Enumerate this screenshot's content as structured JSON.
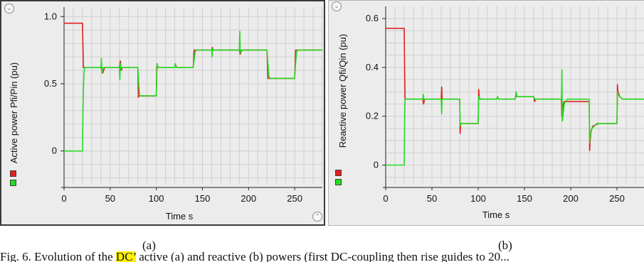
{
  "chart_data": [
    {
      "type": "line",
      "title": "",
      "xlabel": "Time s",
      "ylabel": "Active power Pfi/Pin (pu)",
      "xlim": [
        0,
        280
      ],
      "ylim": [
        -0.25,
        1.07
      ],
      "xticks": [
        "0",
        "50",
        "100",
        "150",
        "200",
        "250"
      ],
      "yticks": [
        "0",
        "0.5",
        "1.0"
      ],
      "grid": true,
      "legend": "bottom-left swatches",
      "series": [
        {
          "color": "#e02020",
          "x": [
            0,
            20,
            20.6,
            21,
            40,
            41,
            42,
            44,
            60,
            61,
            62,
            63,
            80,
            80.5,
            81,
            100,
            100.5,
            101,
            120,
            121,
            122,
            140,
            141,
            142,
            160,
            160.8,
            161.5,
            162,
            190,
            191,
            192,
            193,
            220,
            221,
            222,
            250,
            251,
            252,
            280
          ],
          "y": [
            0.95,
            0.95,
            0.75,
            0.62,
            0.62,
            0.6,
            0.58,
            0.62,
            0.62,
            0.67,
            0.6,
            0.62,
            0.62,
            0.4,
            0.41,
            0.41,
            0.63,
            0.62,
            0.62,
            0.64,
            0.62,
            0.62,
            0.75,
            0.75,
            0.75,
            0.77,
            0.75,
            0.75,
            0.75,
            0.72,
            0.74,
            0.75,
            0.75,
            0.54,
            0.54,
            0.54,
            0.75,
            0.75,
            0.75
          ]
        },
        {
          "color": "#22dd22",
          "x": [
            0,
            20,
            20.5,
            21.5,
            22.5,
            40,
            40.5,
            41,
            42,
            60,
            60.5,
            61,
            62,
            80,
            81,
            82,
            100,
            100.5,
            101,
            102,
            120,
            120.5,
            121,
            122,
            140,
            141,
            142,
            143,
            160,
            160.5,
            161,
            162,
            190,
            190.5,
            191,
            192,
            220,
            221,
            222,
            223,
            250,
            251,
            252,
            253,
            280
          ],
          "y": [
            0,
            0,
            0.3,
            0.58,
            0.62,
            0.62,
            0.69,
            0.58,
            0.62,
            0.62,
            0.53,
            0.65,
            0.62,
            0.62,
            0.5,
            0.41,
            0.41,
            0.55,
            0.65,
            0.62,
            0.62,
            0.65,
            0.63,
            0.62,
            0.62,
            0.68,
            0.73,
            0.75,
            0.75,
            0.7,
            0.76,
            0.75,
            0.75,
            0.89,
            0.73,
            0.75,
            0.75,
            0.65,
            0.56,
            0.54,
            0.54,
            0.65,
            0.73,
            0.75,
            0.75
          ]
        }
      ]
    },
    {
      "type": "line",
      "title": "",
      "xlabel": "Time s",
      "ylabel": "Reactive power Qfi/Qin (pu)",
      "xlim": [
        0,
        280
      ],
      "ylim": [
        -0.08,
        0.65
      ],
      "xticks": [
        "0",
        "50",
        "100",
        "150",
        "200",
        "250"
      ],
      "yticks": [
        "0",
        "0.2",
        "0.4",
        "0.6"
      ],
      "grid": true,
      "legend": "bottom-left swatches",
      "series": [
        {
          "color": "#e02020",
          "x": [
            0,
            20,
            20.5,
            21,
            40,
            41,
            42,
            60,
            60.5,
            61,
            80,
            80.5,
            81,
            82,
            100,
            100.5,
            101,
            102,
            120,
            121,
            122,
            140,
            141,
            142,
            160,
            161,
            162,
            190,
            190.5,
            191,
            192,
            193,
            220,
            220.5,
            221,
            222,
            224,
            230,
            250,
            250.5,
            251,
            253,
            256,
            280
          ],
          "y": [
            0.56,
            0.56,
            0.36,
            0.27,
            0.27,
            0.25,
            0.27,
            0.27,
            0.32,
            0.27,
            0.27,
            0.13,
            0.17,
            0.17,
            0.17,
            0.31,
            0.28,
            0.27,
            0.27,
            0.28,
            0.27,
            0.27,
            0.29,
            0.28,
            0.28,
            0.26,
            0.27,
            0.27,
            0.2,
            0.22,
            0.25,
            0.26,
            0.26,
            0.06,
            0.1,
            0.14,
            0.16,
            0.17,
            0.17,
            0.33,
            0.3,
            0.28,
            0.27,
            0.27
          ]
        },
        {
          "color": "#22dd22",
          "x": [
            0,
            20,
            20.5,
            21,
            40,
            40.5,
            41,
            60,
            60.5,
            61,
            80,
            80.5,
            81,
            100,
            100.5,
            101,
            102,
            120,
            121,
            122,
            140,
            141,
            142,
            160,
            161,
            162,
            190,
            190.5,
            191,
            193,
            196,
            220,
            220.5,
            221,
            223,
            228,
            250,
            250.5,
            251,
            253,
            256,
            280
          ],
          "y": [
            0,
            0,
            0.2,
            0.27,
            0.27,
            0.29,
            0.27,
            0.27,
            0.21,
            0.27,
            0.27,
            0.16,
            0.17,
            0.17,
            0.28,
            0.28,
            0.27,
            0.27,
            0.28,
            0.27,
            0.27,
            0.3,
            0.28,
            0.28,
            0.27,
            0.27,
            0.27,
            0.39,
            0.18,
            0.25,
            0.27,
            0.27,
            0.09,
            0.12,
            0.15,
            0.17,
            0.17,
            0.3,
            0.29,
            0.28,
            0.27,
            0.27
          ]
        }
      ]
    }
  ],
  "captions": {
    "a": "(a)",
    "b": "(b)"
  },
  "footer": {
    "before": "Fig. 6.  Evolution of the ",
    "highlight": "DC’",
    "after": " active (a) and reactive (b) powers (first DC-coupling then rise guides to 20..."
  },
  "colors": {
    "red_series": "#e02020",
    "green_series": "#22dd22",
    "panel_bg": "#ececec",
    "grid": "#cfcfcf"
  },
  "icons": {
    "top_left": "chevron-down-icon",
    "bottom_right": "chevron-up-icon"
  }
}
